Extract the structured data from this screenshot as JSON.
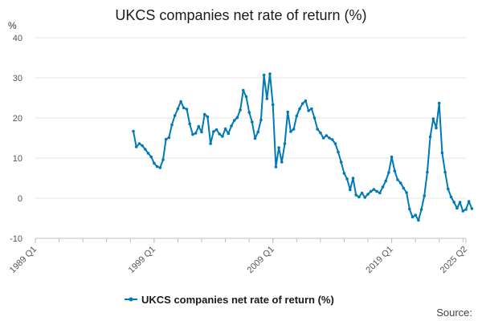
{
  "chart_data": {
    "type": "line",
    "title": "UKCS companies net rate of return (%)",
    "ylabel": "%",
    "xlabel": "",
    "ylim": [
      -10,
      40
    ],
    "yticks": [
      "-10",
      "0",
      "10",
      "20",
      "30",
      "40"
    ],
    "xtick_labels": [
      "1989 Q1",
      "1999 Q1",
      "2009 Q1",
      "2019 Q1",
      "2025 Q2"
    ],
    "x_range_quarters": [
      "1989 Q1",
      "2025 Q2"
    ],
    "grid": "horizontal",
    "legend_position": "bottom",
    "color": "#0079b8",
    "series": [
      {
        "name": "UKCS companies net rate of return (%)",
        "start_quarter": "1997 Q2",
        "values": [
          16.7,
          12.8,
          13.6,
          13.1,
          12.2,
          11.2,
          10.3,
          8.7,
          7.9,
          7.6,
          9.6,
          14.7,
          15.1,
          18.3,
          20.6,
          22.3,
          24.1,
          22.5,
          22.2,
          18.5,
          15.9,
          16.2,
          17.9,
          16.5,
          20.9,
          20.3,
          13.6,
          16.6,
          17.1,
          16.0,
          15.4,
          17.3,
          16.1,
          18.0,
          19.4,
          20.1,
          22.0,
          26.9,
          25.3,
          21.4,
          19.0,
          14.9,
          16.5,
          19.5,
          30.7,
          24.8,
          31.0,
          23.3,
          7.8,
          12.6,
          9.0,
          13.6,
          21.5,
          16.6,
          17.2,
          20.5,
          22.3,
          23.6,
          24.3,
          21.8,
          22.3,
          20.0,
          17.2,
          16.3,
          15.0,
          15.6,
          15.0,
          14.6,
          13.6,
          11.5,
          9.0,
          6.2,
          4.8,
          2.1,
          5.0,
          0.8,
          0.3,
          1.3,
          0.2,
          1.0,
          1.7,
          2.2,
          1.7,
          1.3,
          2.8,
          4.3,
          6.4,
          10.3,
          6.8,
          4.6,
          3.8,
          2.5,
          1.4,
          -2.7,
          -4.7,
          -4.2,
          -5.5,
          -2.8,
          0.6,
          6.5,
          15.3,
          19.8,
          17.5,
          23.7,
          11.3,
          6.5,
          2.3,
          0.3,
          -1.0,
          -2.5,
          -1.0,
          -3.2,
          -2.8,
          -0.8,
          -2.6
        ]
      }
    ]
  },
  "source_label": "Source:"
}
